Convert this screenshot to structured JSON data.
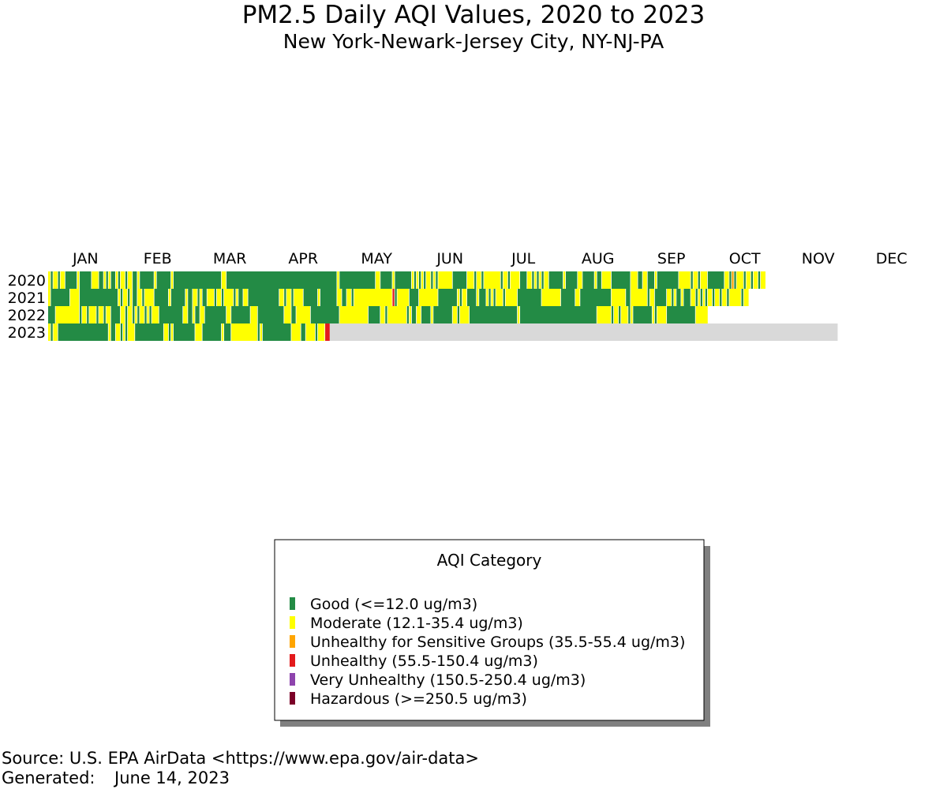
{
  "chart_data": {
    "type": "heatmap",
    "title": "PM2.5 Daily AQI Values, 2020 to 2023",
    "subtitle": "New York-Newark-Jersey City, NY-NJ-PA",
    "months": [
      "JAN",
      "FEB",
      "MAR",
      "APR",
      "MAY",
      "JUN",
      "JUL",
      "AUG",
      "SEP",
      "OCT",
      "NOV",
      "DEC"
    ],
    "year_labels": [
      "2020",
      "2021",
      "2022",
      "2023"
    ],
    "category_codes": {
      "G": "Good",
      "M": "Moderate",
      "S": "Unhealthy for Sensitive Groups",
      "U": "Unhealthy",
      "V": "Very Unhealthy",
      "H": "Hazardous",
      "N": "No data"
    },
    "legend_title": "AQI Category",
    "categories": [
      {
        "code": "G",
        "name": "Good",
        "label": "Good (<=12.0 ug/m3)",
        "color": "#238b45"
      },
      {
        "code": "M",
        "name": "Moderate",
        "label": "Moderate (12.1-35.4 ug/m3)",
        "color": "#ffff00"
      },
      {
        "code": "S",
        "name": "Unhealthy for Sensitive Groups",
        "label": "Unhealthy for Sensitive Groups (35.5-55.4 ug/m3)",
        "color": "#ffa500"
      },
      {
        "code": "U",
        "name": "Unhealthy",
        "label": "Unhealthy (55.5-150.4 ug/m3)",
        "color": "#e31a1c"
      },
      {
        "code": "V",
        "name": "Very Unhealthy",
        "label": "Very Unhealthy (150.5-250.4 ug/m3)",
        "color": "#8e44ad"
      },
      {
        "code": "H",
        "name": "Hazardous",
        "label": "Hazardous (>=250.5 ug/m3)",
        "color": "#7b0028"
      }
    ],
    "no_data_color": "#d9d9d9",
    "years": [
      {
        "year": "2020",
        "days": "MGMMGMMGGGGGMGGGGGMMMGGMGMGGMGMMGMMGGMGGGGGGMGGGGGGMGGGGGGGGGGGGGGGGGGGGMMGGGGGGGGGGGGGGGGGGGGGGGGGGGGGGGGGGGGGGGGGGGGGGMGGGGGGGGGGGGGGGMMGGGGGMGGGGGGGMGMGMGMMGMGMMMMMMGGGGGGMMMGMMGMMMMMMMGMMGMMMMGGGMMGMGMGMMGGGGGGMGGGGGMMGGGGGMGGMMMMGGGGGGGGMMMGGMMGGGMGGGGGGGGGMMMMMGMMGMMMGGGGGGGMMGSGMMMGMMGMMGMM"
      },
      {
        "year": "2021",
        "days": "MGGGGGGGGMMMMGGGGGGGGGGGGGGGGMGMMGMGGMMGMMMMGGGGGGMGGGGGGMGGMMGMGGMMMGMMGMMMMGMGGMMGGGGGGGGGGGGGMMGMMGMMMMGGGGGGMGGGGGGGMMGGMMGMMMMMMMMMMMMMMMMUGMMMMMGGGGMMMMMMMMGGGGGGGGMGMMGGGGMGGGMGMGMMMGMMMMMGGGGGGGGGGMMMMMMMMGGGGGGMMGGGGGGGGGGGGGMMMMMMGGMMMMMMMGMMGGGGGMMGMGGMGGGMMGMGMGMMGMMGMMGMMMMMGMM"
      },
      {
        "year": "2022",
        "days": "GGGMMMMMMMMMMGMMGMMMGMMGMMGGGGMMGMMGMGMMGMGMMMGGGGGGGGGGMMGGMGGMMGGGGGGGGGMMGGGGGGGGMMMGGGGGGGGGGGMMMGGMMMMMMGGGGGGGGGGGGMMMMMMMMMMMMGGGGGMMGMMMMMMMMGMGGMMGGGGMGGGGGGGGMMGMMMMGGGGGGGGGGGGGGGGGGGGMGGGGGGGGGGGGGGGGGGGGGGGGGGGGGGGGMMMMMMGMMGMMMGMGGGGGGGGMGMMMMGGGGGGGGGGGGMMMMM"
      },
      {
        "year": "2023",
        "days": "MGMMGGGGGGGGGGGGGGGGGGGGGMGGMMGMGMMMGGGGGGGGGGGGMMGMGGGGGGGGGMMMGGGGGGGGMGGGMMMMMMMMMMMGMGGGGGGGGGGGGMMMMGGMMMMGMMMUUNNNNNNNNNNNNNNNNNNNNNNNNNNNNNNNNNNNNNNNNNNNNNNNNNNNNNNNNNNNNNNNNNNNNNNNNNNNNNNNNNNNNNNNNNNNNNNNNNNNNNNNNNNNNNNNNNNNNNNNNNNNNNNNNNNNNNNNNNNNNNNNNNNNNNNNNNNNNNNNNNNNNNNNNNNNNNNNNNNNNNNNNNNNNNNNNNNNNNNNNNNNNNNNNNNN"
      }
    ]
  },
  "footer": {
    "source": "Source: U.S. EPA AirData <https://www.epa.gov/air-data>",
    "generated_label": "Generated:",
    "generated_date": "June 14, 2023"
  }
}
